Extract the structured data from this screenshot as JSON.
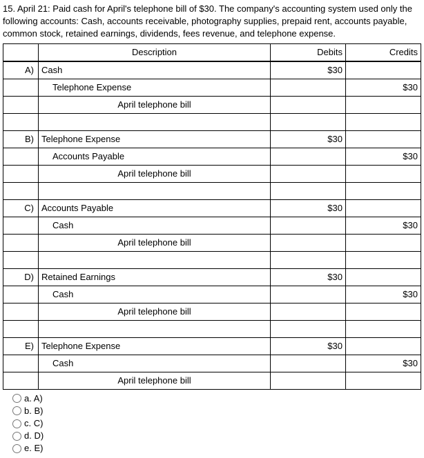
{
  "question": "15. April 21: Paid cash for April's telephone bill of $30.  The company's accounting system used only the following accounts: Cash, accounts receivable, photography supplies, prepaid rent, accounts payable, common stock, retained earnings, dividends, fees revenue, and telephone expense.",
  "headers": {
    "desc": "Description",
    "debits": "Debits",
    "credits": "Credits"
  },
  "entries": [
    {
      "label": "A)",
      "line1_desc": "Cash",
      "line1_debit": "$30",
      "line1_credit": "",
      "line2_desc": "Telephone Expense",
      "line2_debit": "",
      "line2_credit": "$30",
      "memo": "April telephone bill"
    },
    {
      "label": "B)",
      "line1_desc": "Telephone Expense",
      "line1_debit": "$30",
      "line1_credit": "",
      "line2_desc": "Accounts Payable",
      "line2_debit": "",
      "line2_credit": "$30",
      "memo": "April telephone bill"
    },
    {
      "label": "C)",
      "line1_desc": "Accounts Payable",
      "line1_debit": "$30",
      "line1_credit": "",
      "line2_desc": "Cash",
      "line2_debit": "",
      "line2_credit": "$30",
      "memo": "April telephone bill"
    },
    {
      "label": "D)",
      "line1_desc": "Retained Earnings",
      "line1_debit": "$30",
      "line1_credit": "",
      "line2_desc": "Cash",
      "line2_debit": "",
      "line2_credit": "$30",
      "memo": "April telephone bill"
    },
    {
      "label": "E)",
      "line1_desc": "Telephone Expense",
      "line1_debit": "$30",
      "line1_credit": "",
      "line2_desc": "Cash",
      "line2_debit": "",
      "line2_credit": "$30",
      "memo": "April telephone bill"
    }
  ],
  "options": [
    {
      "label": "a. A)"
    },
    {
      "label": "b. B)"
    },
    {
      "label": "c. C)"
    },
    {
      "label": "d. D)"
    },
    {
      "label": "e. E)"
    }
  ]
}
